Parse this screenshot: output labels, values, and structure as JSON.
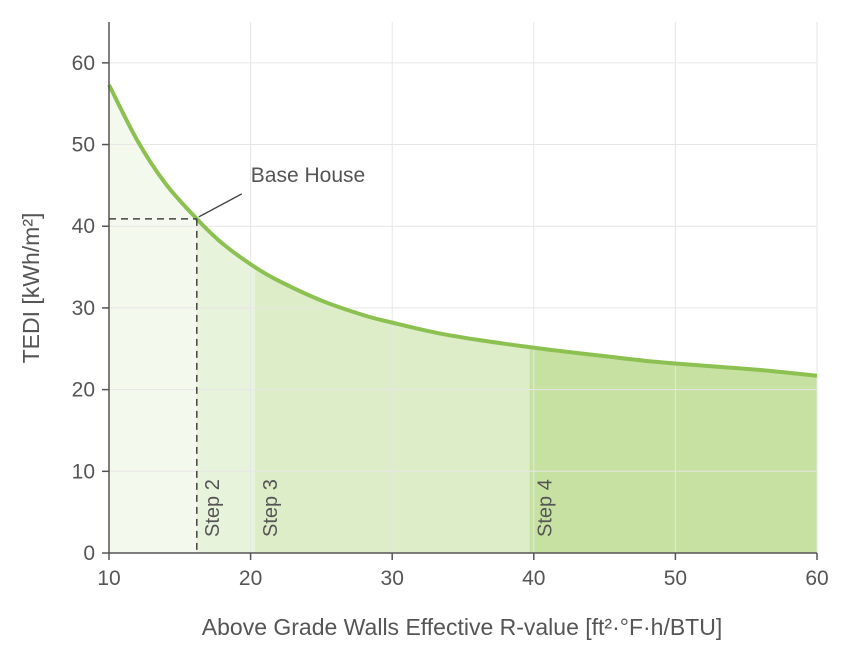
{
  "chart_data": {
    "type": "area",
    "xlabel": "Above Grade Walls Effective R-value [ft²·°F·h/BTU]",
    "ylabel": "TEDI [kWh/m²]",
    "xlim": [
      10,
      60
    ],
    "ylim": [
      0,
      65
    ],
    "xticks": [
      10,
      20,
      30,
      40,
      50,
      60
    ],
    "yticks": [
      0,
      10,
      20,
      30,
      40,
      50,
      60
    ],
    "grid": true,
    "series": [
      {
        "x": [
          10,
          12,
          14,
          16.2,
          18,
          20.3,
          22,
          25,
          28,
          30,
          33,
          36,
          39.7,
          42,
          45,
          48,
          50,
          53,
          56,
          60
        ],
        "values": [
          57.3,
          50.5,
          45.2,
          40.9,
          37.9,
          35.0,
          33.3,
          30.9,
          29.1,
          28.2,
          27.0,
          26.1,
          25.2,
          24.7,
          24.1,
          23.5,
          23.2,
          22.8,
          22.4,
          21.7
        ],
        "color": "#8cc152"
      }
    ],
    "regions": [
      {
        "from": 10,
        "to": 16.2,
        "color": "#f4f9ee"
      },
      {
        "from": 16.2,
        "to": 20.3,
        "color": "#e8f3dc"
      },
      {
        "from": 20.3,
        "to": 39.7,
        "color": "#dcedc8"
      },
      {
        "from": 39.7,
        "to": 60,
        "color": "#c6e1a2"
      }
    ],
    "step_markers": [
      {
        "label": "Step 2",
        "x": 16.2
      },
      {
        "label": "Step 3",
        "x": 20.3
      },
      {
        "label": "Step 4",
        "x": 39.7
      }
    ],
    "base_house": {
      "label": "Base House",
      "x": 16.2,
      "y": 40.9
    }
  }
}
